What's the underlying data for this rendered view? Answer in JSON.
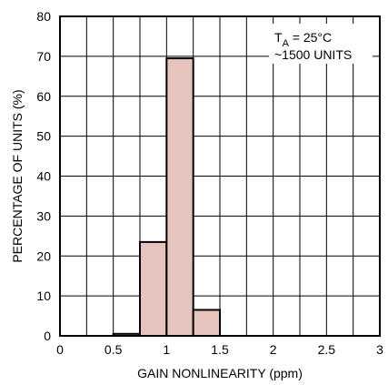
{
  "chart_data": {
    "type": "bar",
    "title": "",
    "xlabel": "GAIN NONLINEARITY (ppm)",
    "ylabel": "PERCENTAGE OF UNITS (%)",
    "xlim": [
      0,
      3
    ],
    "ylim": [
      0,
      80
    ],
    "x_ticks": [
      "0",
      "0.5",
      "1",
      "1.5",
      "2",
      "2.5",
      "3"
    ],
    "y_ticks": [
      "0",
      "10",
      "20",
      "30",
      "40",
      "50",
      "60",
      "70",
      "80"
    ],
    "grid": true,
    "bin_width": 0.25,
    "bars": [
      {
        "x_start": 0.5,
        "x_end": 0.75,
        "value": 0.5
      },
      {
        "x_start": 0.75,
        "x_end": 1.0,
        "value": 23.5
      },
      {
        "x_start": 1.0,
        "x_end": 1.25,
        "value": 69.5
      },
      {
        "x_start": 1.25,
        "x_end": 1.5,
        "value": 6.5
      }
    ],
    "bar_fill": "#e6c3bd",
    "bar_stroke": "#000000",
    "annotation": {
      "line1_main": "T",
      "line1_sub": "A",
      "line1_rest": " = 25°C",
      "line2": "~1500 UNITS"
    }
  }
}
